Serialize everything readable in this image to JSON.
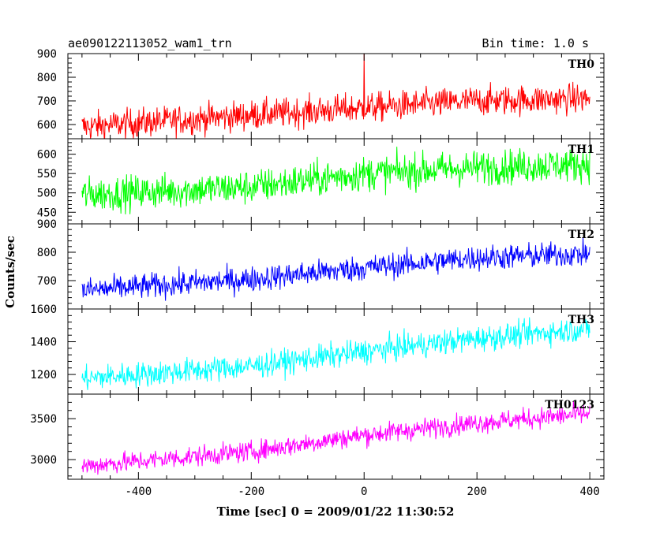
{
  "chart_data": {
    "type": "line",
    "title_left": "ae090122113052_wam1_trn",
    "title_right": "Bin time: 1.0 s",
    "xlabel": "Time [sec] 0 = 2009/01/22 11:30:52",
    "ylabel": "Counts/sec",
    "xlim": [
      -525,
      425
    ],
    "x_ticks": [
      -400,
      -200,
      0,
      200,
      400
    ],
    "x_start": -500,
    "x_end": 400,
    "x_step": 1,
    "panels": [
      {
        "name": "TH0",
        "color": "#ff0000",
        "ylim": [
          540,
          900
        ],
        "y_ticks": [
          600,
          700,
          800,
          900
        ],
        "trend": [
          [
            -500,
            590
          ],
          [
            -200,
            640
          ],
          [
            0,
            670
          ],
          [
            200,
            700
          ],
          [
            400,
            710
          ]
        ],
        "noise": 45,
        "spikes": [
          [
            0,
            905
          ]
        ]
      },
      {
        "name": "TH1",
        "color": "#00ff00",
        "ylim": [
          420,
          640
        ],
        "y_ticks": [
          450,
          500,
          550,
          600
        ],
        "trend": [
          [
            -500,
            495
          ],
          [
            -200,
            515
          ],
          [
            0,
            550
          ],
          [
            200,
            565
          ],
          [
            400,
            575
          ]
        ],
        "noise": 32,
        "spikes": []
      },
      {
        "name": "TH2",
        "color": "#0000ff",
        "ylim": [
          600,
          900
        ],
        "y_ticks": [
          700,
          800,
          900
        ],
        "trend": [
          [
            -500,
            665
          ],
          [
            -200,
            705
          ],
          [
            0,
            745
          ],
          [
            200,
            780
          ],
          [
            400,
            795
          ]
        ],
        "noise": 32,
        "spikes": []
      },
      {
        "name": "TH3",
        "color": "#00ffff",
        "ylim": [
          1080,
          1600
        ],
        "y_ticks": [
          1200,
          1400,
          1600
        ],
        "trend": [
          [
            -500,
            1175
          ],
          [
            -200,
            1250
          ],
          [
            0,
            1340
          ],
          [
            200,
            1420
          ],
          [
            400,
            1480
          ]
        ],
        "noise": 55,
        "spikes": []
      },
      {
        "name": "TH0123",
        "color": "#ff00ff",
        "ylim": [
          2760,
          3800
        ],
        "y_ticks": [
          3000,
          3500
        ],
        "trend": [
          [
            -500,
            2920
          ],
          [
            -200,
            3100
          ],
          [
            0,
            3300
          ],
          [
            200,
            3450
          ],
          [
            400,
            3560
          ]
        ],
        "noise": 90,
        "spikes": []
      }
    ]
  }
}
